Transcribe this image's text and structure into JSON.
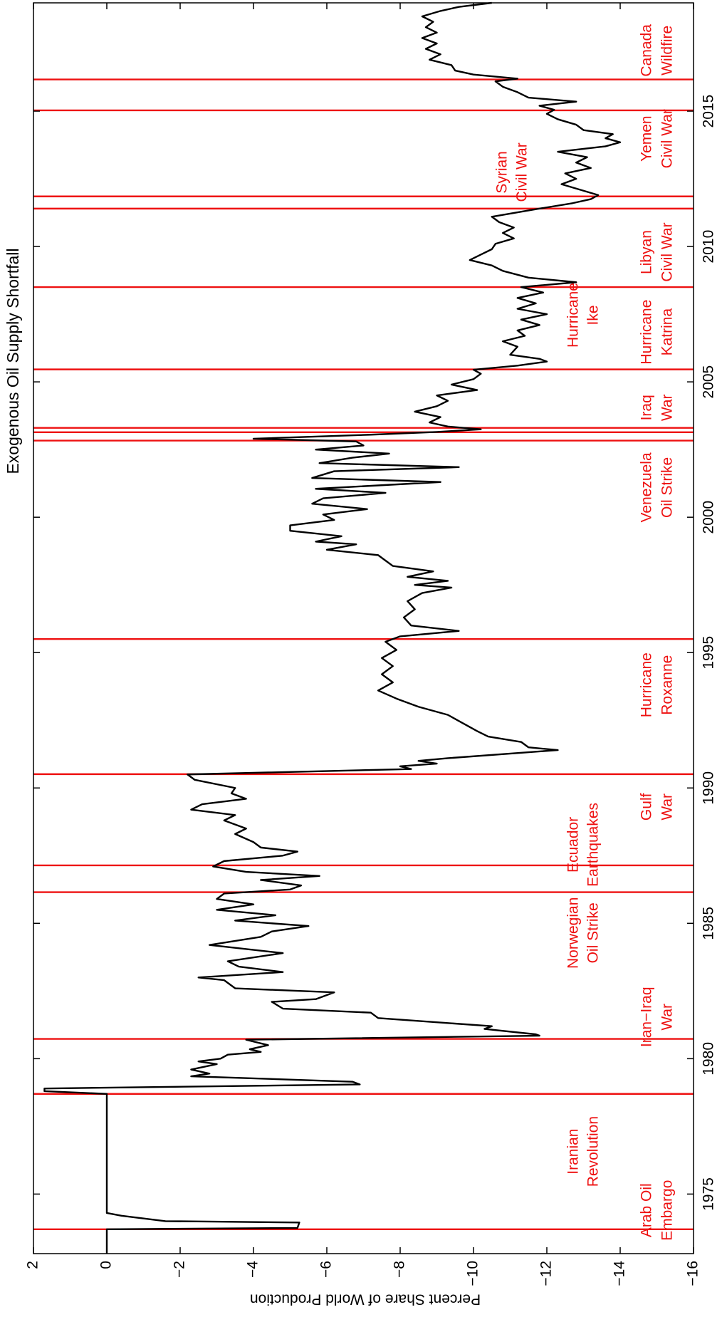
{
  "chart_data": {
    "type": "line",
    "title": "Exogenous Oil Supply Shortfall",
    "ylabel": "Percent Share of World Production",
    "xlim": [
      1972.8,
      2019
    ],
    "ylim": [
      -16,
      2
    ],
    "xticks": [
      1975,
      1980,
      1985,
      1990,
      1995,
      2000,
      2005,
      2010,
      2015
    ],
    "yticks": [
      2,
      0,
      {
        "value": -2,
        "label": "−2"
      },
      {
        "value": -4,
        "label": "−4"
      },
      {
        "value": -6,
        "label": "−6"
      },
      {
        "value": -8,
        "label": "−8"
      },
      {
        "value": -10,
        "label": "−10"
      },
      {
        "value": -12,
        "label": "−12"
      },
      {
        "value": -14,
        "label": "−14"
      },
      {
        "value": -16,
        "label": "−16"
      }
    ],
    "event_color": "#ee1111",
    "events": [
      {
        "label": [
          "Arab Oil",
          "Embargo"
        ],
        "years": [
          1973.7
        ]
      },
      {
        "label": [
          "Iranian",
          "Revolution"
        ],
        "years": [
          1978.7
        ]
      },
      {
        "label": [
          "Iran−Iraq",
          "War"
        ],
        "years": [
          1980.73
        ]
      },
      {
        "label": [
          "Norwegian",
          "Oil Strike"
        ],
        "years": [
          1986.15
        ]
      },
      {
        "label": [
          "Ecuador",
          "Earthquakes"
        ],
        "years": [
          1987.14
        ]
      },
      {
        "label": [
          "Gulf",
          "War"
        ],
        "years": [
          1990.51
        ]
      },
      {
        "label": [
          "Hurricane",
          "Roxanne"
        ],
        "years": [
          1995.5
        ]
      },
      {
        "label": [
          "Venezuela",
          "Oil Strike"
        ],
        "years": [
          2002.83
        ]
      },
      {
        "label": [
          "Iraq",
          "War"
        ],
        "years": [
          2003.14,
          2003.3
        ]
      },
      {
        "label": [
          "Hurricane",
          "Katrina"
        ],
        "years": [
          2005.46
        ]
      },
      {
        "label": [
          "Hurricane",
          "Ike"
        ],
        "years": [
          2008.5
        ]
      },
      {
        "label": [
          "Libyan",
          "Civil War"
        ],
        "years": [
          2011.4
        ]
      },
      {
        "label": [
          "Syrian",
          "Civil War"
        ],
        "years": [
          2011.85
        ]
      },
      {
        "label": [
          "Yemen",
          "Civil War"
        ],
        "years": [
          2015.03
        ]
      },
      {
        "label": [
          "Canada",
          "Wildfire"
        ],
        "years": [
          2016.17
        ]
      }
    ],
    "series": [
      {
        "color": "#000000",
        "x": [
          1972.8,
          1973.7,
          1973.75,
          1973.95,
          1974.0,
          1974.2,
          1974.3,
          1978.7,
          1978.8,
          1978.9,
          1979.05,
          1979.15,
          1979.35,
          1979.45,
          1979.6,
          1979.8,
          1979.9,
          1980.0,
          1980.15,
          1980.25,
          1980.35,
          1980.5,
          1980.7,
          1980.85,
          1980.9,
          1981.1,
          1981.2,
          1981.5,
          1981.7,
          1981.85,
          1982.1,
          1982.2,
          1982.45,
          1982.6,
          1982.9,
          1983.0,
          1983.2,
          1983.4,
          1983.6,
          1983.9,
          1984.2,
          1984.5,
          1984.7,
          1984.9,
          1985.1,
          1985.3,
          1985.5,
          1985.7,
          1985.9,
          1986.1,
          1986.25,
          1986.4,
          1986.6,
          1986.75,
          1986.9,
          1987.1,
          1987.3,
          1987.5,
          1987.65,
          1987.8,
          1988.0,
          1988.3,
          1988.5,
          1988.8,
          1989.0,
          1989.2,
          1989.4,
          1989.6,
          1989.8,
          1990.0,
          1990.3,
          1990.5,
          1990.7,
          1990.8,
          1990.9,
          1991.0,
          1991.1,
          1991.4,
          1991.5,
          1991.7,
          1991.9,
          1992.1,
          1992.4,
          1992.7,
          1993.0,
          1993.3,
          1993.6,
          1993.9,
          1994.2,
          1994.5,
          1994.8,
          1995.1,
          1995.4,
          1995.6,
          1995.8,
          1996.0,
          1996.3,
          1996.6,
          1996.9,
          1997.2,
          1997.4,
          1997.5,
          1997.65,
          1997.8,
          1998.0,
          1998.2,
          1998.4,
          1998.6,
          1998.8,
          1999.0,
          1999.1,
          1999.3,
          1999.5,
          1999.7,
          1999.9,
          2000.1,
          2000.3,
          2000.5,
          2000.7,
          2000.9,
          2001.05,
          2001.3,
          2001.45,
          2001.7,
          2001.85,
          2002.0,
          2002.2,
          2002.35,
          2002.5,
          2002.65,
          2002.8,
          2002.9,
          2003.05,
          2003.15,
          2003.25,
          2003.35,
          2003.5,
          2003.7,
          2003.9,
          2004.1,
          2004.3,
          2004.5,
          2004.7,
          2004.9,
          2005.1,
          2005.3,
          2005.45,
          2005.6,
          2005.75,
          2005.85,
          2006.0,
          2006.3,
          2006.5,
          2006.7,
          2006.9,
          2007.1,
          2007.3,
          2007.5,
          2007.7,
          2007.9,
          2008.1,
          2008.3,
          2008.5,
          2008.68,
          2008.85,
          2009.1,
          2009.3,
          2009.5,
          2009.7,
          2009.9,
          2010.1,
          2010.3,
          2010.5,
          2010.7,
          2010.9,
          2011.1,
          2011.4,
          2011.6,
          2011.75,
          2011.9,
          2012.1,
          2012.3,
          2012.5,
          2012.7,
          2012.9,
          2013.1,
          2013.3,
          2013.5,
          2013.7,
          2013.85,
          2014.0,
          2014.15,
          2014.3,
          2014.5,
          2014.7,
          2014.9,
          2015.05,
          2015.2,
          2015.35,
          2015.5,
          2015.7,
          2015.9,
          2016.1,
          2016.2,
          2016.35,
          2016.5,
          2016.7,
          2016.9,
          2017.1,
          2017.3,
          2017.5,
          2017.7,
          2017.9,
          2018.1,
          2018.3,
          2018.5,
          2018.7,
          2018.85,
          2019.0
        ],
        "values": [
          0,
          0,
          -5.2,
          -5.25,
          -1.6,
          -0.4,
          0,
          0,
          1.7,
          1.7,
          -6.9,
          -6.7,
          -2.3,
          -2.8,
          -2.3,
          -3.0,
          -2.5,
          -3.1,
          -3.3,
          -4.2,
          -3.9,
          -4.4,
          -3.8,
          -11.8,
          -11.7,
          -10.3,
          -10.5,
          -7.4,
          -7.2,
          -4.8,
          -4.5,
          -5.7,
          -6.2,
          -3.5,
          -3.2,
          -2.5,
          -4.8,
          -3.6,
          -3.3,
          -4.8,
          -2.8,
          -4.2,
          -4.5,
          -5.5,
          -3.5,
          -4.6,
          -3.0,
          -4.0,
          -3.0,
          -3.2,
          -5.0,
          -5.3,
          -4.2,
          -5.8,
          -3.8,
          -2.9,
          -3.2,
          -4.8,
          -5.2,
          -4.2,
          -4.0,
          -3.5,
          -3.8,
          -3.2,
          -3.5,
          -2.3,
          -2.6,
          -3.8,
          -3.4,
          -3.5,
          -2.4,
          -2.2,
          -8.3,
          -8.0,
          -9.0,
          -8.5,
          -9.3,
          -12.3,
          -11.5,
          -11.3,
          -10.4,
          -10.1,
          -9.7,
          -9.3,
          -8.5,
          -7.9,
          -7.4,
          -7.8,
          -7.5,
          -7.8,
          -7.5,
          -7.9,
          -7.6,
          -8.0,
          -9.6,
          -8.3,
          -8.1,
          -8.4,
          -8.2,
          -8.6,
          -9.4,
          -8.4,
          -9.3,
          -8.2,
          -8.9,
          -7.8,
          -7.6,
          -7.4,
          -6.0,
          -6.8,
          -5.7,
          -6.4,
          -5.0,
          -5.0,
          -6.2,
          -5.9,
          -7.1,
          -5.6,
          -5.9,
          -7.6,
          -5.7,
          -9.1,
          -5.6,
          -6.2,
          -9.6,
          -5.8,
          -6.7,
          -7.7,
          -5.7,
          -7.0,
          -6.8,
          -4.0,
          -7.2,
          -9.0,
          -10.2,
          -9.3,
          -8.8,
          -9.1,
          -8.4,
          -9.0,
          -9.3,
          -9.0,
          -10.1,
          -9.4,
          -10.0,
          -10.2,
          -10.0,
          -11.2,
          -12.0,
          -11.8,
          -11.0,
          -11.2,
          -10.8,
          -11.4,
          -11.2,
          -11.8,
          -11.3,
          -12.0,
          -11.2,
          -11.7,
          -11.2,
          -11.9,
          -11.3,
          -12.8,
          -11.5,
          -10.8,
          -10.5,
          -9.9,
          -10.2,
          -10.5,
          -10.6,
          -11.1,
          -10.8,
          -11.1,
          -10.7,
          -10.5,
          -11.8,
          -12.7,
          -13.2,
          -13.4,
          -12.9,
          -12.4,
          -12.8,
          -12.5,
          -13.2,
          -12.8,
          -13.1,
          -12.3,
          -13.6,
          -14.0,
          -13.6,
          -13.8,
          -13.0,
          -12.8,
          -12.3,
          -12.0,
          -12.2,
          -11.8,
          -12.8,
          -11.5,
          -11.2,
          -10.8,
          -10.6,
          -11.2,
          -10.0,
          -9.5,
          -9.4,
          -8.8,
          -9.1,
          -8.7,
          -9.0,
          -8.6,
          -9.0,
          -8.7,
          -8.9,
          -8.6,
          -9.1,
          -9.6,
          -10.5
        ]
      }
    ]
  }
}
